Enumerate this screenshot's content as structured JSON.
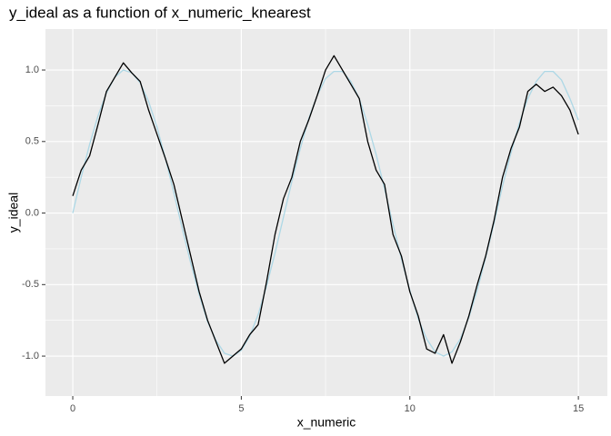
{
  "chart_data": {
    "type": "line",
    "title": "y_ideal as a function of x_numeric_knearest",
    "x_label": "x_numeric",
    "y_label": "y_ideal",
    "x": [
      0,
      0.25,
      0.5,
      0.75,
      1,
      1.25,
      1.5,
      1.75,
      2,
      2.25,
      2.5,
      2.75,
      3,
      3.25,
      3.5,
      3.75,
      4,
      4.25,
      4.5,
      4.75,
      5,
      5.25,
      5.5,
      5.75,
      6,
      6.25,
      6.5,
      6.75,
      7,
      7.25,
      7.5,
      7.75,
      8,
      8.25,
      8.5,
      8.75,
      9,
      9.25,
      9.5,
      9.75,
      10,
      10.25,
      10.5,
      10.75,
      11,
      11.25,
      11.5,
      11.75,
      12,
      12.25,
      12.5,
      12.75,
      13,
      13.25,
      13.5,
      13.75,
      14,
      14.25,
      14.5,
      14.75,
      15
    ],
    "series": [
      {
        "color": "#add8e6",
        "values": [
          0,
          0.25,
          0.48,
          0.68,
          0.84,
          0.95,
          1.0,
          0.98,
          0.91,
          0.78,
          0.6,
          0.38,
          0.14,
          -0.11,
          -0.35,
          -0.57,
          -0.76,
          -0.89,
          -0.98,
          -1.0,
          -0.96,
          -0.86,
          -0.71,
          -0.51,
          -0.28,
          -0.03,
          0.22,
          0.45,
          0.66,
          0.82,
          0.94,
          0.99,
          0.99,
          0.92,
          0.8,
          0.62,
          0.41,
          0.17,
          -0.08,
          -0.32,
          -0.54,
          -0.74,
          -0.88,
          -0.97,
          -1.0,
          -0.97,
          -0.88,
          -0.73,
          -0.54,
          -0.31,
          -0.07,
          0.19,
          0.42,
          0.63,
          0.8,
          0.92,
          0.99,
          0.99,
          0.93,
          0.8,
          0.65
        ]
      },
      {
        "color": "#000000",
        "values": [
          0.12,
          0.3,
          0.4,
          0.62,
          0.85,
          0.95,
          1.05,
          0.98,
          0.92,
          0.72,
          0.55,
          0.38,
          0.2,
          -0.05,
          -0.3,
          -0.55,
          -0.75,
          -0.9,
          -1.05,
          -1.0,
          -0.95,
          -0.85,
          -0.78,
          -0.48,
          -0.15,
          0.1,
          0.25,
          0.5,
          0.65,
          0.82,
          1.0,
          1.1,
          1.0,
          0.9,
          0.8,
          0.5,
          0.3,
          0.2,
          -0.15,
          -0.3,
          -0.55,
          -0.72,
          -0.95,
          -0.98,
          -0.85,
          -1.05,
          -0.9,
          -0.72,
          -0.5,
          -0.3,
          -0.05,
          0.25,
          0.45,
          0.6,
          0.85,
          0.9,
          0.85,
          0.88,
          0.82,
          0.72,
          0.55
        ]
      }
    ],
    "xlim": [
      -0.81,
      15.86
    ],
    "ylim": [
      -1.279,
      1.286
    ],
    "xticks": [
      0,
      5,
      10,
      15
    ],
    "yticks": [
      {
        "value": -1,
        "label": "-1.0"
      },
      -0.5,
      {
        "value": 0,
        "label": "0.0"
      },
      0.5,
      {
        "value": 1,
        "label": "1.0"
      }
    ],
    "x_minor_ticks": [
      2.5,
      7.5,
      12.5
    ],
    "y_minor_ticks": [
      -0.75,
      -0.25,
      0.25,
      0.75
    ],
    "grid": true
  }
}
